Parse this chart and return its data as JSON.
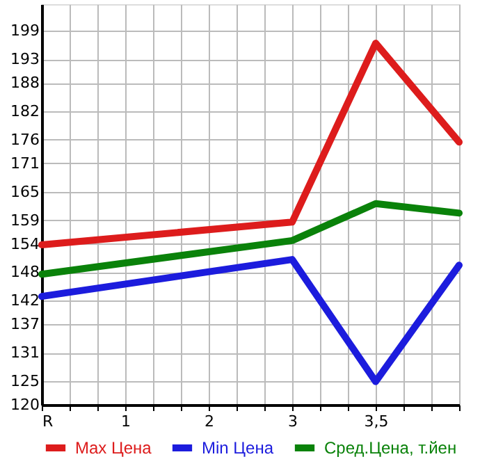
{
  "chart_data": {
    "type": "line",
    "categories": [
      "R",
      "1",
      "2",
      "3",
      "3,5",
      null
    ],
    "series": [
      {
        "name": "Max Цена",
        "color": "#dd1c1c",
        "values": [
          153.8,
          null,
          null,
          158.6,
          196.4,
          175.5
        ]
      },
      {
        "name": "Min Цена",
        "color": "#1c1cdd",
        "values": [
          142.9,
          null,
          null,
          150.7,
          124.9,
          149.5
        ]
      },
      {
        "name": "Сред.Цена, т.йен",
        "color": "#0a820a",
        "values": [
          147.6,
          null,
          null,
          154.7,
          162.5,
          160.5
        ]
      }
    ],
    "ylim": [
      120,
      204.64
    ],
    "yticks": [
      120,
      125,
      131,
      137,
      142,
      148,
      154,
      159,
      165,
      171,
      176,
      182,
      188,
      193,
      199
    ],
    "grid": true,
    "legend": "bottom",
    "marker": "none",
    "line_style": "solid"
  }
}
